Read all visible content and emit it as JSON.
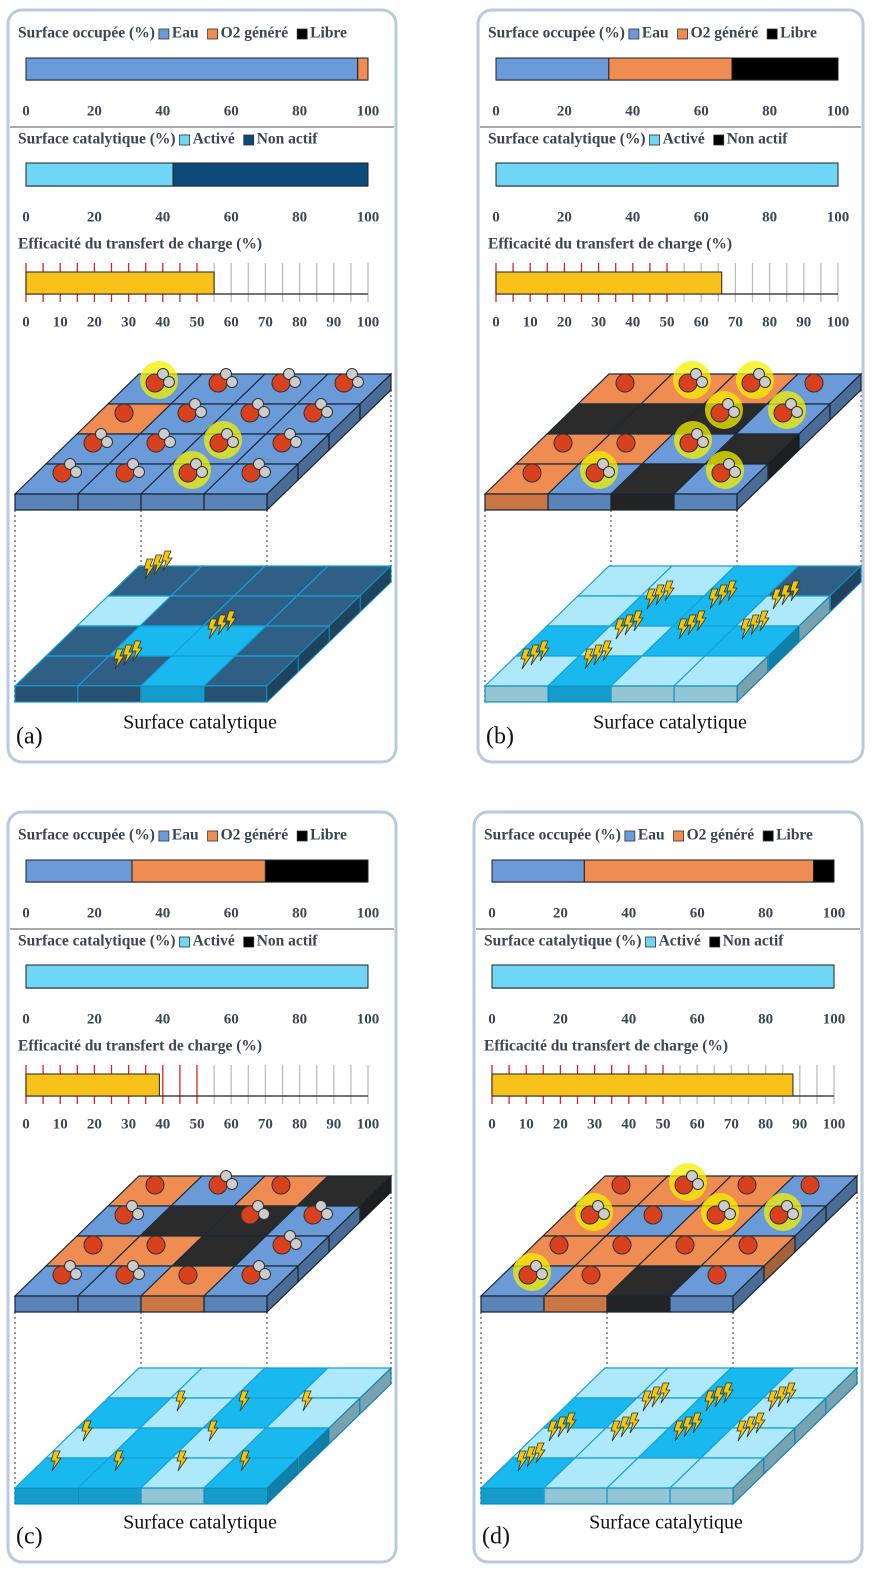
{
  "chart_data": [
    {
      "type": "bar",
      "stacked": true,
      "title": "Surface occupée (%)",
      "series": [
        {
          "name": "Eau",
          "color": "#6a9bd8",
          "values": [
            97
          ]
        },
        {
          "name": "O2 généré",
          "color": "#ee8c52",
          "values": [
            3
          ]
        },
        {
          "name": "Libre",
          "color": "#000000",
          "values": [
            0
          ]
        }
      ],
      "xlim": [
        0,
        100
      ],
      "xticks": [
        0,
        20,
        40,
        60,
        80,
        100
      ]
    },
    {
      "type": "bar",
      "stacked": true,
      "title": "Surface catalytique (%)",
      "series": [
        {
          "name": "Activé",
          "color": "#6fd6f7",
          "values": [
            43
          ]
        },
        {
          "name": "Non actif",
          "color": "#0d4a7c",
          "values": [
            57
          ]
        }
      ],
      "xlim": [
        0,
        100
      ],
      "xticks": [
        0,
        20,
        40,
        60,
        80,
        100
      ]
    },
    {
      "type": "bar",
      "title": "Efficacité du transfert de charge (%)",
      "series": [
        {
          "color": "#f8c21a",
          "values": [
            55
          ]
        }
      ],
      "xlim": [
        0,
        100
      ],
      "xticks": [
        0,
        10,
        20,
        30,
        40,
        50,
        60,
        70,
        80,
        90,
        100
      ],
      "xgrid": [
        0,
        5,
        10,
        15,
        20,
        25,
        30,
        35,
        40,
        45,
        50,
        55,
        60,
        65,
        70,
        75,
        80,
        85,
        90,
        95,
        100
      ],
      "grid_color": "#bdbdbd",
      "highlight_color": "#e02020",
      "highlight_below": 50
    },
    {
      "type": "bar",
      "stacked": true,
      "title": "Surface occupée (%)",
      "series": [
        {
          "name": "Eau",
          "color": "#6a9bd8",
          "values": [
            33
          ]
        },
        {
          "name": "O2 généré",
          "color": "#ee8c52",
          "values": [
            36
          ]
        },
        {
          "name": "Libre",
          "color": "#000000",
          "values": [
            31
          ]
        }
      ],
      "xlim": [
        0,
        100
      ],
      "xticks": [
        0,
        20,
        40,
        60,
        80,
        100
      ]
    },
    {
      "type": "bar",
      "stacked": true,
      "title": "Surface catalytique (%)",
      "series": [
        {
          "name": "Activé",
          "color": "#6fd6f7",
          "values": [
            100
          ]
        },
        {
          "name": "Non actif",
          "color": "#000000",
          "values": [
            0
          ]
        }
      ],
      "xlim": [
        0,
        100
      ],
      "xticks": [
        0,
        20,
        40,
        60,
        80,
        100
      ]
    },
    {
      "type": "bar",
      "title": "Efficacité du transfert de charge (%)",
      "series": [
        {
          "color": "#f8c21a",
          "values": [
            66
          ]
        }
      ],
      "xlim": [
        0,
        100
      ],
      "xticks": [
        0,
        10,
        20,
        30,
        40,
        50,
        60,
        70,
        80,
        90,
        100
      ],
      "xgrid": [
        0,
        5,
        10,
        15,
        20,
        25,
        30,
        35,
        40,
        45,
        50,
        55,
        60,
        65,
        70,
        75,
        80,
        85,
        90,
        95,
        100
      ],
      "grid_color": "#bdbdbd",
      "highlight_color": "#e02020",
      "highlight_below": 50
    },
    {
      "type": "bar",
      "stacked": true,
      "title": "Surface occupée (%)",
      "series": [
        {
          "name": "Eau",
          "color": "#6a9bd8",
          "values": [
            31
          ]
        },
        {
          "name": "O2 généré",
          "color": "#ee8c52",
          "values": [
            39
          ]
        },
        {
          "name": "Libre",
          "color": "#000000",
          "values": [
            30
          ]
        }
      ],
      "xlim": [
        0,
        100
      ],
      "xticks": [
        0,
        20,
        40,
        60,
        80,
        100
      ]
    },
    {
      "type": "bar",
      "stacked": true,
      "title": "Surface catalytique (%)",
      "series": [
        {
          "name": "Activé",
          "color": "#6fd6f7",
          "values": [
            100
          ]
        },
        {
          "name": "Non actif",
          "color": "#000000",
          "values": [
            0
          ]
        }
      ],
      "xlim": [
        0,
        100
      ],
      "xticks": [
        0,
        20,
        40,
        60,
        80,
        100
      ]
    },
    {
      "type": "bar",
      "title": "Efficacité du transfert de charge (%)",
      "series": [
        {
          "color": "#f8c21a",
          "values": [
            39
          ]
        }
      ],
      "xlim": [
        0,
        100
      ],
      "xticks": [
        0,
        10,
        20,
        30,
        40,
        50,
        60,
        70,
        80,
        90,
        100
      ],
      "xgrid": [
        0,
        5,
        10,
        15,
        20,
        25,
        30,
        35,
        40,
        45,
        50,
        55,
        60,
        65,
        70,
        75,
        80,
        85,
        90,
        95,
        100
      ],
      "grid_color": "#bdbdbd",
      "highlight_color": "#e02020",
      "highlight_below": 50
    },
    {
      "type": "bar",
      "stacked": true,
      "title": "Surface occupée (%)",
      "series": [
        {
          "name": "Eau",
          "color": "#6a9bd8",
          "values": [
            27
          ]
        },
        {
          "name": "O2 généré",
          "color": "#ee8c52",
          "values": [
            67
          ]
        },
        {
          "name": "Libre",
          "color": "#000000",
          "values": [
            6
          ]
        }
      ],
      "xlim": [
        0,
        100
      ],
      "xticks": [
        0,
        20,
        40,
        60,
        80,
        100
      ]
    },
    {
      "type": "bar",
      "stacked": true,
      "title": "Surface catalytique (%)",
      "series": [
        {
          "name": "Activé",
          "color": "#6fd6f7",
          "values": [
            100
          ]
        },
        {
          "name": "Non actif",
          "color": "#000000",
          "values": [
            0
          ]
        }
      ],
      "xlim": [
        0,
        100
      ],
      "xticks": [
        0,
        20,
        40,
        60,
        80,
        100
      ]
    },
    {
      "type": "bar",
      "title": "Efficacité du transfert de charge (%)",
      "series": [
        {
          "color": "#f8c21a",
          "values": [
            88
          ]
        }
      ],
      "xlim": [
        0,
        100
      ],
      "xticks": [
        0,
        10,
        20,
        30,
        40,
        50,
        60,
        70,
        80,
        90,
        100
      ],
      "xgrid": [
        0,
        5,
        10,
        15,
        20,
        25,
        30,
        35,
        40,
        45,
        50,
        55,
        60,
        65,
        70,
        75,
        80,
        85,
        90,
        95,
        100
      ],
      "grid_color": "#bdbdbd",
      "highlight_color": "#e02020",
      "highlight_below": 50
    }
  ],
  "panels": [
    {
      "label": "(a)",
      "caption": "Surface catalytique"
    },
    {
      "label": "(b)",
      "caption": "Surface catalytique"
    },
    {
      "label": "(c)",
      "caption": "Surface catalytique"
    },
    {
      "label": "(d)",
      "caption": "Surface catalytique"
    }
  ]
}
